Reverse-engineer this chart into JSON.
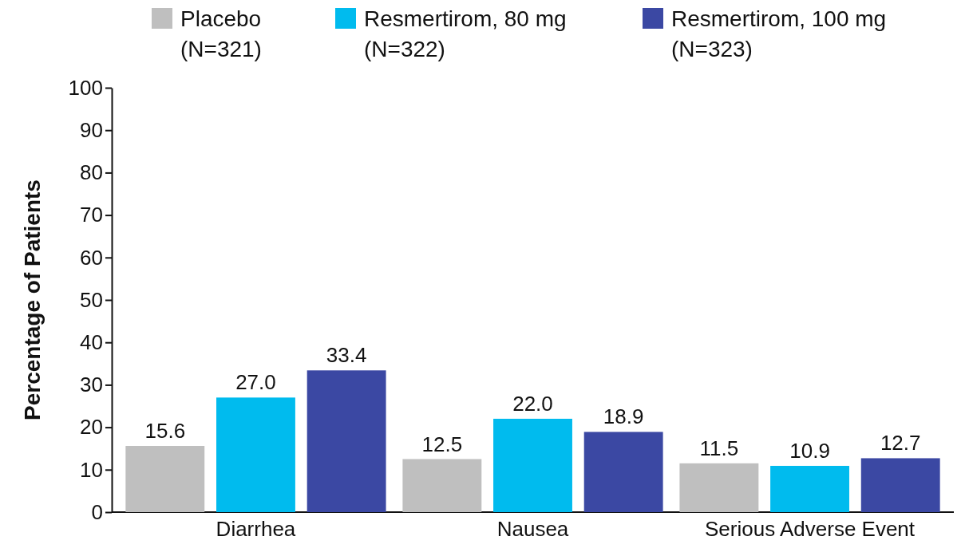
{
  "chart_data": {
    "type": "bar",
    "ylabel": "Percentage of Patients",
    "categories": [
      "Diarrhea",
      "Nausea",
      "Serious Adverse Event"
    ],
    "series": [
      {
        "name": "Placebo\n(N=321)",
        "color": "#bfbfbf",
        "values": [
          15.6,
          12.5,
          11.5
        ],
        "value_labels": [
          "15.6",
          "12.5",
          "11.5"
        ]
      },
      {
        "name": "Resmertirom, 80 mg\n(N=322)",
        "color": "#00bbee",
        "values": [
          27.0,
          22.0,
          10.9
        ],
        "value_labels": [
          "27.0",
          "22.0",
          "10.9"
        ]
      },
      {
        "name": "Resmertirom, 100 mg\n(N=323)",
        "color": "#3b48a3",
        "values": [
          33.4,
          18.9,
          12.7
        ],
        "value_labels": [
          "33.4",
          "18.9",
          "12.7"
        ]
      }
    ],
    "ylim": [
      0,
      100
    ],
    "yticks": [
      0,
      10,
      20,
      30,
      40,
      50,
      60,
      70,
      80,
      90,
      100
    ],
    "legend": "top",
    "grid": false
  }
}
